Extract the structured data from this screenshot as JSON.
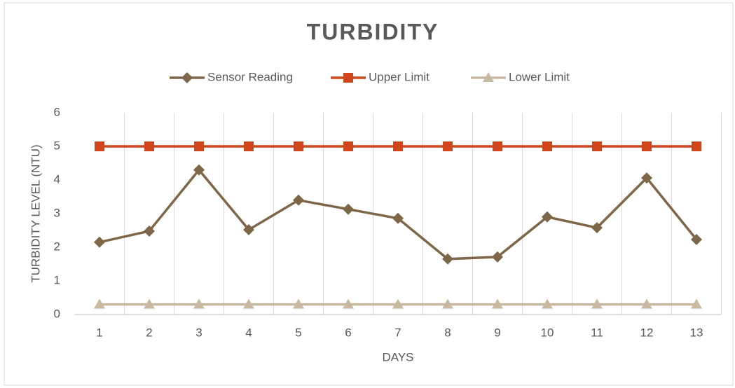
{
  "chart_data": {
    "type": "line",
    "title": "TURBIDITY",
    "x_label": "DAYS",
    "y_label": "TURBIDITY LEVEL (NTU)",
    "categories": [
      1,
      2,
      3,
      4,
      5,
      6,
      7,
      8,
      9,
      10,
      11,
      12,
      13
    ],
    "series": [
      {
        "name": "Sensor Reading",
        "color": "#7e6648",
        "marker": "diamond",
        "values": [
          2.15,
          2.48,
          4.3,
          2.52,
          3.4,
          3.13,
          2.86,
          1.65,
          1.71,
          2.9,
          2.58,
          4.06,
          2.23
        ]
      },
      {
        "name": "Upper Limit",
        "color": "#d0451b",
        "marker": "square",
        "values": [
          5,
          5,
          5,
          5,
          5,
          5,
          5,
          5,
          5,
          5,
          5,
          5,
          5
        ]
      },
      {
        "name": "Lower Limit",
        "color": "#c8b9a0",
        "marker": "triangle",
        "values": [
          0.3,
          0.3,
          0.3,
          0.3,
          0.3,
          0.3,
          0.3,
          0.3,
          0.3,
          0.3,
          0.3,
          0.3,
          0.3
        ]
      }
    ],
    "ylim": [
      0,
      6
    ],
    "yticks": [
      0,
      1,
      2,
      3,
      4,
      5,
      6
    ],
    "grid": true,
    "legend": "top"
  }
}
